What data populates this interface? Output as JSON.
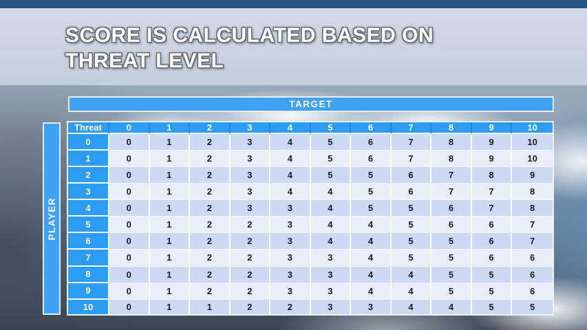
{
  "slide": {
    "title_line1": "SCORE IS CALCULATED BASED ON",
    "title_line2": "THREAT LEVEL"
  },
  "matrix": {
    "target_label": "TARGET",
    "player_label": "PLAYER",
    "corner_label": "Threat",
    "column_headers": [
      "0",
      "1",
      "2",
      "3",
      "4",
      "5",
      "6",
      "7",
      "8",
      "9",
      "10"
    ],
    "rows": [
      {
        "label": "0",
        "values": [
          "0",
          "1",
          "2",
          "3",
          "4",
          "5",
          "6",
          "7",
          "8",
          "9",
          "10"
        ]
      },
      {
        "label": "1",
        "values": [
          "0",
          "1",
          "2",
          "3",
          "4",
          "5",
          "6",
          "7",
          "8",
          "9",
          "10"
        ]
      },
      {
        "label": "2",
        "values": [
          "0",
          "1",
          "2",
          "3",
          "4",
          "5",
          "5",
          "6",
          "7",
          "8",
          "9"
        ]
      },
      {
        "label": "3",
        "values": [
          "0",
          "1",
          "2",
          "3",
          "4",
          "4",
          "5",
          "6",
          "7",
          "7",
          "8"
        ]
      },
      {
        "label": "4",
        "values": [
          "0",
          "1",
          "2",
          "3",
          "3",
          "4",
          "5",
          "5",
          "6",
          "7",
          "8"
        ]
      },
      {
        "label": "5",
        "values": [
          "0",
          "1",
          "2",
          "2",
          "3",
          "4",
          "4",
          "5",
          "6",
          "6",
          "7"
        ]
      },
      {
        "label": "6",
        "values": [
          "0",
          "1",
          "2",
          "2",
          "3",
          "4",
          "4",
          "5",
          "5",
          "6",
          "7"
        ]
      },
      {
        "label": "7",
        "values": [
          "0",
          "1",
          "2",
          "2",
          "3",
          "3",
          "4",
          "5",
          "5",
          "6",
          "6"
        ]
      },
      {
        "label": "8",
        "values": [
          "0",
          "1",
          "2",
          "2",
          "3",
          "3",
          "4",
          "4",
          "5",
          "5",
          "6"
        ]
      },
      {
        "label": "9",
        "values": [
          "0",
          "1",
          "2",
          "2",
          "3",
          "3",
          "4",
          "4",
          "5",
          "5",
          "6"
        ]
      },
      {
        "label": "10",
        "values": [
          "0",
          "1",
          "1",
          "2",
          "2",
          "3",
          "3",
          "4",
          "4",
          "5",
          "5"
        ]
      }
    ]
  },
  "colors": {
    "header_blue": "#2d9cf3",
    "bar_blue": "#3fa2f5",
    "row_stripe_dark": "#ccd9f3",
    "row_stripe_light": "#e9eef9",
    "title_band": "#cdd6e2"
  }
}
